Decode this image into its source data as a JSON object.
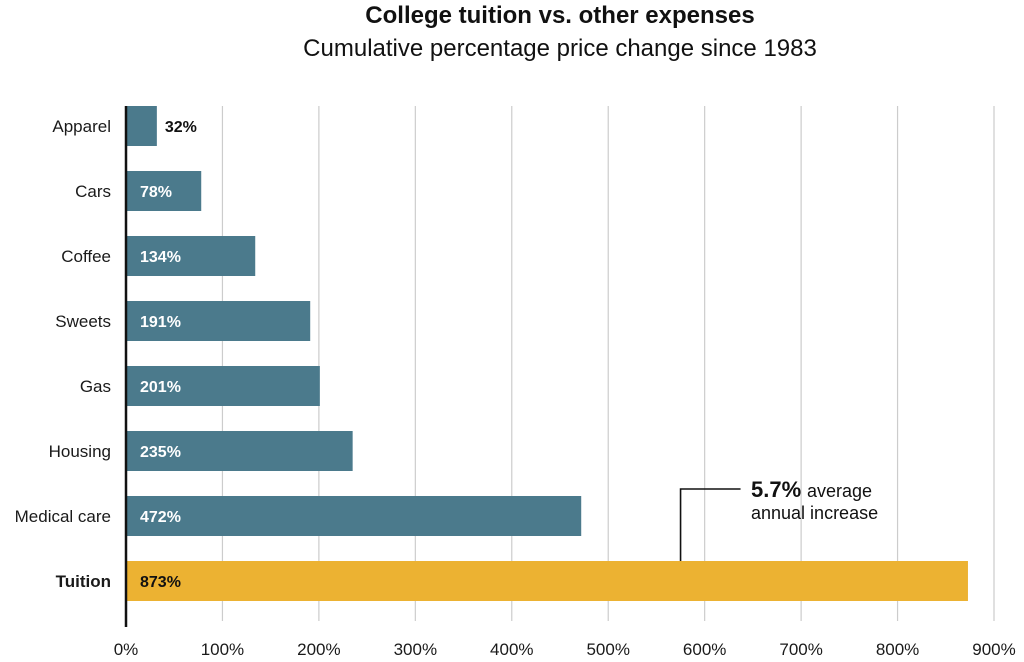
{
  "chart_data": {
    "type": "bar",
    "orientation": "horizontal",
    "title": "College tuition vs. other expenses",
    "subtitle": "Cumulative percentage price change since 1983",
    "categories": [
      "Apparel",
      "Cars",
      "Coffee",
      "Sweets",
      "Gas",
      "Housing",
      "Medical care",
      "Tuition"
    ],
    "values": [
      32,
      78,
      134,
      191,
      201,
      235,
      472,
      873
    ],
    "value_labels": [
      "32%",
      "78%",
      "134%",
      "191%",
      "201%",
      "235%",
      "472%",
      "873%"
    ],
    "highlight": "Tuition",
    "xlim": [
      0,
      900
    ],
    "xticks": [
      0,
      100,
      200,
      300,
      400,
      500,
      600,
      700,
      800,
      900
    ],
    "xtick_labels": [
      "0%",
      "100%",
      "200%",
      "300%",
      "400%",
      "500%",
      "600%",
      "700%",
      "800%",
      "900%"
    ],
    "grid": "vertical",
    "colors": {
      "bar": "#4b7a8c",
      "highlight": "#ecb232",
      "grid": "#cccccc",
      "axis": "#111111"
    },
    "annotation": {
      "value": "5.7%",
      "text_line1": "average",
      "text_line2": "annual increase",
      "x": 575
    }
  }
}
